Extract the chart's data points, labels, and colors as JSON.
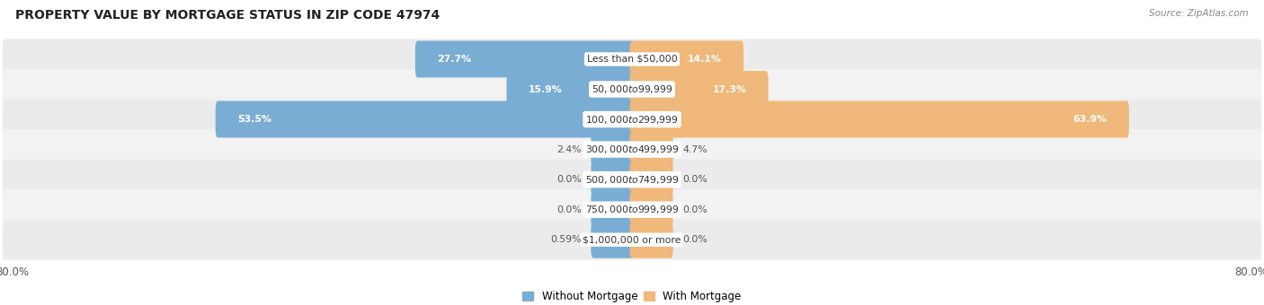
{
  "title": "PROPERTY VALUE BY MORTGAGE STATUS IN ZIP CODE 47974",
  "source": "Source: ZipAtlas.com",
  "categories": [
    "Less than $50,000",
    "$50,000 to $99,999",
    "$100,000 to $299,999",
    "$300,000 to $499,999",
    "$500,000 to $749,999",
    "$750,000 to $999,999",
    "$1,000,000 or more"
  ],
  "without_mortgage": [
    27.7,
    15.9,
    53.5,
    2.4,
    0.0,
    0.0,
    0.59
  ],
  "with_mortgage": [
    14.1,
    17.3,
    63.9,
    4.7,
    0.0,
    0.0,
    0.0
  ],
  "without_mortgage_labels": [
    "27.7%",
    "15.9%",
    "53.5%",
    "2.4%",
    "0.0%",
    "0.0%",
    "0.59%"
  ],
  "with_mortgage_labels": [
    "14.1%",
    "17.3%",
    "63.9%",
    "4.7%",
    "0.0%",
    "0.0%",
    "0.0%"
  ],
  "color_without": "#7aadd4",
  "color_with": "#f0b87a",
  "axis_left_label": "80.0%",
  "axis_right_label": "80.0%",
  "max_val": 80.0,
  "bar_height": 0.62,
  "min_stub": 5.0,
  "row_colors": [
    "#ebebeb",
    "#f2f2f2"
  ],
  "legend_without": "Without Mortgage",
  "legend_with": "With Mortgage",
  "label_threshold": 10.0
}
